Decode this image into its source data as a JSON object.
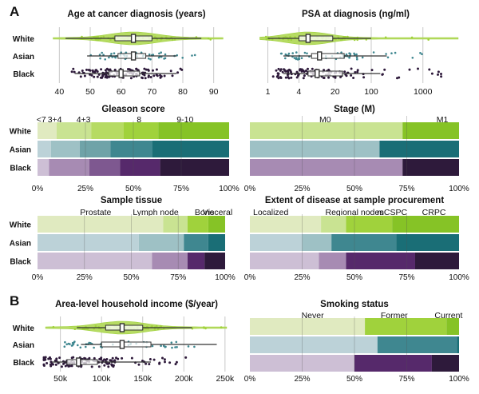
{
  "panel_labels": [
    "A",
    "B"
  ],
  "palette": {
    "White": [
      "#e0eac0",
      "#c9e392",
      "#b6db63",
      "#a0d23c",
      "#86c326"
    ],
    "Asian": [
      "#bcd2d8",
      "#9ec1c5",
      "#6fa3a8",
      "#3f8790",
      "#1a6e76"
    ],
    "Black": [
      "#cdbfd5",
      "#a78bb3",
      "#7e5890",
      "#56296b",
      "#2e1a3b"
    ],
    "grid": "#c8c8c8",
    "box_fill": "#ffffff",
    "box_stroke": "#333333"
  },
  "chart_data": [
    {
      "id": "age",
      "type": "box-violin",
      "title": "Age at cancer diagnosis (years)",
      "scale": "linear",
      "xlim": [
        35,
        95
      ],
      "ticks": [
        40,
        50,
        60,
        70,
        80,
        90
      ],
      "tick_labels": [
        "40",
        "50",
        "60",
        "70",
        "80",
        "90"
      ],
      "groups": [
        {
          "name": "White",
          "q1": 58,
          "median": 64,
          "q3": 70,
          "wlo": 42,
          "whi": 86,
          "dot_range": [
            38,
            93
          ],
          "n_dots": 60
        },
        {
          "name": "Asian",
          "q1": 59,
          "median": 64,
          "q3": 68,
          "wlo": 49,
          "whi": 78,
          "dot_range": [
            46,
            86
          ],
          "n_dots": 55
        },
        {
          "name": "Black",
          "q1": 56,
          "median": 60,
          "q3": 66,
          "wlo": 45,
          "whi": 78,
          "dot_range": [
            44,
            80
          ],
          "n_dots": 120
        }
      ]
    },
    {
      "id": "psa",
      "type": "box-violin",
      "title": "PSA at diagnosis (ng/ml)",
      "scale": "log",
      "xlim": [
        0.5,
        5000
      ],
      "ticks": [
        1,
        4,
        20,
        100,
        1000
      ],
      "tick_labels": [
        "1",
        "4",
        "20",
        "100",
        "1000"
      ],
      "groups": [
        {
          "name": "White",
          "q1": 4,
          "median": 6,
          "q3": 18,
          "wlo": 1,
          "whi": 100,
          "dot_range": [
            0.7,
            4800
          ],
          "n_dots": 55
        },
        {
          "name": "Asian",
          "q1": 7,
          "median": 10,
          "q3": 30,
          "wlo": 2,
          "whi": 200,
          "dot_range": [
            1,
            1200
          ],
          "n_dots": 55
        },
        {
          "name": "Black",
          "q1": 6,
          "median": 9,
          "q3": 28,
          "wlo": 2,
          "whi": 150,
          "dot_range": [
            1,
            2500
          ],
          "n_dots": 120
        }
      ]
    },
    {
      "id": "gleason",
      "type": "stacked-bar-100",
      "title": "Gleason score",
      "categories": [
        "<7",
        "3+4",
        "4+3",
        "8",
        "9-10"
      ],
      "xticks": [
        "0%",
        "25%",
        "50%",
        "75%",
        "100%"
      ],
      "series": [
        {
          "name": "White",
          "values": [
            10,
            18,
            17,
            18,
            37
          ]
        },
        {
          "name": "Asian",
          "values": [
            7,
            15,
            16,
            22,
            40
          ]
        },
        {
          "name": "Black",
          "values": [
            6,
            21,
            16,
            21,
            36
          ]
        }
      ]
    },
    {
      "id": "stage",
      "type": "stacked-bar-100",
      "title": "Stage (M)",
      "categories": [
        "M0",
        "M1"
      ],
      "xticks": [
        "0%",
        "25%",
        "50%",
        "75%",
        "100%"
      ],
      "series": [
        {
          "name": "White",
          "values": [
            73,
            27
          ]
        },
        {
          "name": "Asian",
          "values": [
            62,
            38
          ]
        },
        {
          "name": "Black",
          "values": [
            73,
            27
          ]
        }
      ]
    },
    {
      "id": "tissue",
      "type": "stacked-bar-100",
      "title": "Sample tissue",
      "categories": [
        "Prostate",
        "Lymph node",
        "Bone",
        "Visceral"
      ],
      "xticks": [
        "0%",
        "25%",
        "50%",
        "75%",
        "100%"
      ],
      "series": [
        {
          "name": "White",
          "values": [
            67,
            13,
            11,
            9
          ]
        },
        {
          "name": "Asian",
          "values": [
            54,
            24,
            13,
            9
          ]
        },
        {
          "name": "Black",
          "values": [
            61,
            19,
            9,
            11
          ]
        }
      ]
    },
    {
      "id": "extent",
      "type": "stacked-bar-100",
      "title": "Extent of disease at sample procurement",
      "categories": [
        "Localized",
        "Regional nodes",
        "mCSPC",
        "CRPC"
      ],
      "xticks": [
        "0%",
        "25%",
        "50%",
        "75%",
        "100%"
      ],
      "series": [
        {
          "name": "White",
          "values": [
            34,
            12,
            22,
            32
          ]
        },
        {
          "name": "Asian",
          "values": [
            25,
            14,
            31,
            30
          ]
        },
        {
          "name": "Black",
          "values": [
            33,
            13,
            33,
            21
          ]
        }
      ]
    },
    {
      "id": "income",
      "type": "box-violin",
      "title": "Area-level household income ($/year)",
      "scale": "linear",
      "xlim": [
        30000,
        255000
      ],
      "ticks": [
        50000,
        100000,
        150000,
        200000,
        250000
      ],
      "tick_labels": [
        "50k",
        "100k",
        "150k",
        "200k",
        "250k"
      ],
      "groups": [
        {
          "name": "White",
          "q1": 105000,
          "median": 125000,
          "q3": 150000,
          "wlo": 70000,
          "whi": 210000,
          "dot_range": [
            32000,
            252000
          ],
          "n_dots": 60
        },
        {
          "name": "Asian",
          "q1": 100000,
          "median": 125000,
          "q3": 160000,
          "wlo": 75000,
          "whi": 240000,
          "dot_range": [
            55000,
            250000
          ],
          "n_dots": 45
        },
        {
          "name": "Black",
          "q1": 58000,
          "median": 72000,
          "q3": 95000,
          "wlo": 40000,
          "whi": 160000,
          "dot_range": [
            30000,
            205000
          ],
          "n_dots": 130
        }
      ]
    },
    {
      "id": "smoking",
      "type": "stacked-bar-100",
      "title": "Smoking status",
      "categories": [
        "Never",
        "Former",
        "Current"
      ],
      "xticks": [
        "0%",
        "25%",
        "50%",
        "75%",
        "100%"
      ],
      "series": [
        {
          "name": "White",
          "values": [
            55,
            39,
            6
          ]
        },
        {
          "name": "Asian",
          "values": [
            61,
            38,
            1
          ]
        },
        {
          "name": "Black",
          "values": [
            50,
            37,
            13
          ]
        }
      ]
    }
  ]
}
